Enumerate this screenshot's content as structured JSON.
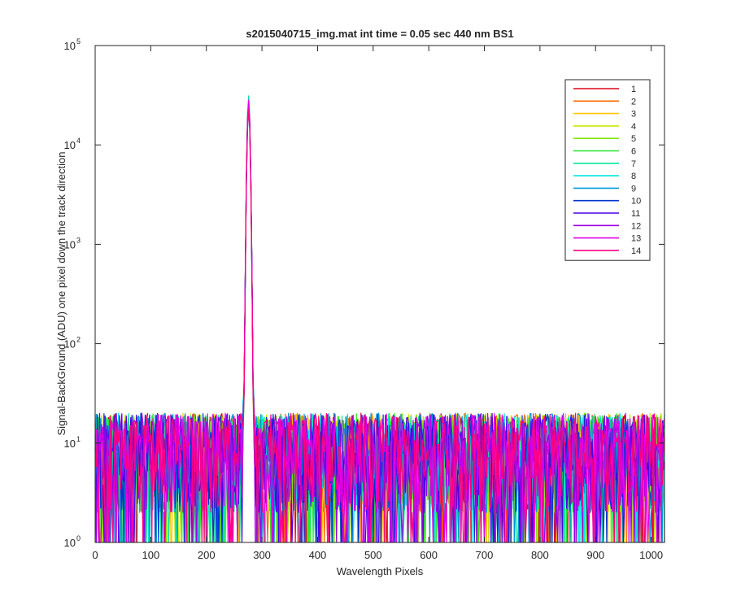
{
  "chart_data": {
    "type": "line",
    "title": "s2015040715_img.mat int time = 0.05 sec  440 nm BS1",
    "xlabel": "Wavelength Pixels",
    "ylabel": "Signal-BackGround (ADU) one pixel down the track direction",
    "xlim": [
      0,
      1024
    ],
    "ylim": [
      1,
      100000
    ],
    "yscale": "log",
    "grid": false,
    "legend_position": "top-right",
    "x_ticks": [
      0,
      100,
      200,
      300,
      400,
      500,
      600,
      700,
      800,
      900,
      1000
    ],
    "x_tick_labels": [
      "0",
      "100",
      "200",
      "300",
      "400",
      "500",
      "600",
      "700",
      "800",
      "900",
      "1000"
    ],
    "y_ticks": [
      1,
      10,
      100,
      1000,
      10000,
      100000
    ],
    "y_tick_base": "10",
    "y_tick_exponents": [
      "0",
      "1",
      "2",
      "3",
      "4",
      "5"
    ],
    "peak": {
      "x": 276,
      "y_max": 32000
    },
    "noise_level": {
      "typical": [
        2,
        20
      ]
    },
    "series": [
      {
        "name": "1",
        "color": "#e0001a"
      },
      {
        "name": "2",
        "color": "#ff6a00"
      },
      {
        "name": "3",
        "color": "#ffc400"
      },
      {
        "name": "4",
        "color": "#c8e600"
      },
      {
        "name": "5",
        "color": "#7de600"
      },
      {
        "name": "6",
        "color": "#22e62e"
      },
      {
        "name": "7",
        "color": "#00e699"
      },
      {
        "name": "8",
        "color": "#00e6e6"
      },
      {
        "name": "9",
        "color": "#0099d6"
      },
      {
        "name": "10",
        "color": "#0033cc"
      },
      {
        "name": "11",
        "color": "#4b00e6"
      },
      {
        "name": "12",
        "color": "#9a00e6"
      },
      {
        "name": "13",
        "color": "#e600e6"
      },
      {
        "name": "14",
        "color": "#ff0080"
      }
    ]
  }
}
